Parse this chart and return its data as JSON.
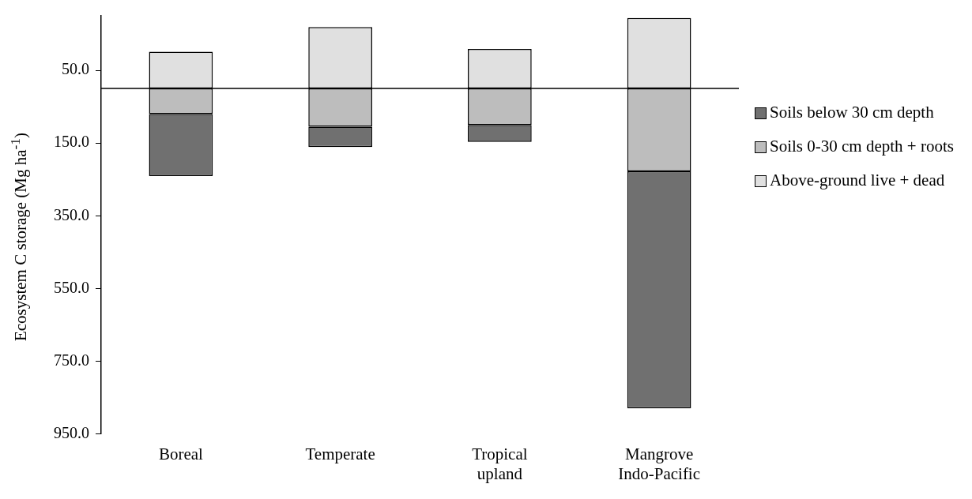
{
  "chart_data": {
    "type": "bar",
    "stacked": true,
    "ylabel": "Ecosystem C storage (Mg ha$^{-1}$)",
    "categories": [
      "Boreal",
      "Temperate",
      "Tropical upland",
      "Mangrove Indo-Pacific"
    ],
    "series": [
      {
        "name": "Above-ground live + dead",
        "color": "#e0e0e0",
        "values": [
          -101,
          -169,
          -109,
          -194
        ]
      },
      {
        "name": "Soils 0-30 cm depth + roots",
        "color": "#bdbdbd",
        "values": [
          70,
          105,
          100,
          228
        ]
      },
      {
        "name": "Soils below 30 cm depth",
        "color": "#707070",
        "values": [
          171,
          56,
          47,
          652
        ]
      }
    ],
    "ylim": [
      950,
      -200
    ],
    "yticks": [
      {
        "value": -50,
        "label": "50.0"
      },
      {
        "value": 150,
        "label": "150.0"
      },
      {
        "value": 350,
        "label": "350.0"
      },
      {
        "value": 550,
        "label": "550.0"
      },
      {
        "value": 750,
        "label": "750.0"
      },
      {
        "value": 950,
        "label": "950.0"
      }
    ],
    "ref_lines": [
      {
        "axis": "y",
        "value": 0
      }
    ],
    "grid": false,
    "legend": "right"
  }
}
